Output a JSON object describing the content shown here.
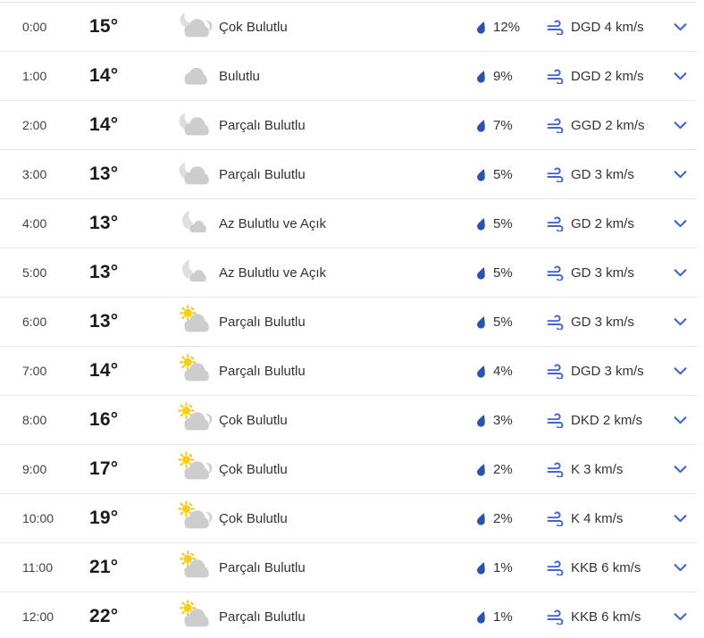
{
  "widget": {
    "name": "hourly-weather-forecast",
    "language": "tr",
    "columns": [
      "time",
      "temperature",
      "condition",
      "precipitation",
      "wind",
      "expand"
    ]
  },
  "colors": {
    "precip_drop": "#2a52ae",
    "wind_icon": "#4463cc",
    "chevron": "#3f6bc4",
    "cloud_gray": "#cdcdcd",
    "moon_gray": "#dedede",
    "sun_yellow": "#f7d011",
    "row_divider": "#e6e6e6",
    "text_primary": "#333333",
    "temp_text": "#1b1b1b"
  },
  "icon_names": {
    "precipitation": "raindrop-icon",
    "wind": "wind-icon",
    "expand": "chevron-down-icon"
  },
  "rows": [
    {
      "time": "0:00",
      "temp": "15°",
      "condition": "Çok Bulutlu",
      "icon": "night-mostly-cloudy",
      "precip": "12%",
      "wind": "DGD 4 km/s"
    },
    {
      "time": "1:00",
      "temp": "14°",
      "condition": "Bulutlu",
      "icon": "cloudy",
      "precip": "9%",
      "wind": "DGD 2 km/s"
    },
    {
      "time": "2:00",
      "temp": "14°",
      "condition": "Parçalı Bulutlu",
      "icon": "night-partly-cloudy",
      "precip": "7%",
      "wind": "GGD 2 km/s"
    },
    {
      "time": "3:00",
      "temp": "13°",
      "condition": "Parçalı Bulutlu",
      "icon": "night-partly-cloudy",
      "precip": "5%",
      "wind": "GD 3 km/s"
    },
    {
      "time": "4:00",
      "temp": "13°",
      "condition": "Az Bulutlu ve Açık",
      "icon": "night-mostly-clear",
      "precip": "5%",
      "wind": "GD 2 km/s"
    },
    {
      "time": "5:00",
      "temp": "13°",
      "condition": "Az Bulutlu ve Açık",
      "icon": "night-mostly-clear",
      "precip": "5%",
      "wind": "GD 3 km/s"
    },
    {
      "time": "6:00",
      "temp": "13°",
      "condition": "Parçalı Bulutlu",
      "icon": "day-partly-cloudy",
      "precip": "5%",
      "wind": "GD 3 km/s"
    },
    {
      "time": "7:00",
      "temp": "14°",
      "condition": "Parçalı Bulutlu",
      "icon": "day-partly-cloudy",
      "precip": "4%",
      "wind": "DGD 3 km/s"
    },
    {
      "time": "8:00",
      "temp": "16°",
      "condition": "Çok Bulutlu",
      "icon": "day-mostly-cloudy",
      "precip": "3%",
      "wind": "DKD 2 km/s"
    },
    {
      "time": "9:00",
      "temp": "17°",
      "condition": "Çok Bulutlu",
      "icon": "day-mostly-cloudy",
      "precip": "2%",
      "wind": "K 3 km/s"
    },
    {
      "time": "10:00",
      "temp": "19°",
      "condition": "Çok Bulutlu",
      "icon": "day-mostly-cloudy",
      "precip": "2%",
      "wind": "K 4 km/s"
    },
    {
      "time": "11:00",
      "temp": "21°",
      "condition": "Parçalı Bulutlu",
      "icon": "day-partly-cloudy",
      "precip": "1%",
      "wind": "KKB 6 km/s"
    },
    {
      "time": "12:00",
      "temp": "22°",
      "condition": "Parçalı Bulutlu",
      "icon": "day-partly-cloudy",
      "precip": "1%",
      "wind": "KKB 6 km/s"
    }
  ]
}
